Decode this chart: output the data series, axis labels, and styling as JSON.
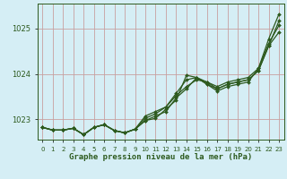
{
  "xlabel": "Graphe pression niveau de la mer (hPa)",
  "background_color": "#d5eef5",
  "grid_color": "#c8a0a0",
  "line_color": "#2d5a1e",
  "xlim": [
    -0.5,
    23.5
  ],
  "ylim": [
    1022.55,
    1025.55
  ],
  "yticks": [
    1023,
    1024,
    1025
  ],
  "xticks": [
    0,
    1,
    2,
    3,
    4,
    5,
    6,
    7,
    8,
    9,
    10,
    11,
    12,
    13,
    14,
    15,
    16,
    17,
    18,
    19,
    20,
    21,
    22,
    23
  ],
  "series": [
    [
      1022.82,
      1022.76,
      1022.76,
      1022.8,
      1022.66,
      1022.82,
      1022.88,
      1022.75,
      1022.7,
      1022.78,
      1022.97,
      1023.07,
      1023.17,
      1023.47,
      1023.67,
      1023.92,
      1023.77,
      1023.62,
      1023.72,
      1023.77,
      1023.82,
      1024.12,
      1024.77,
      1025.32
    ],
    [
      1022.82,
      1022.76,
      1022.76,
      1022.8,
      1022.66,
      1022.82,
      1022.88,
      1022.75,
      1022.7,
      1022.78,
      1023.02,
      1023.12,
      1023.27,
      1023.52,
      1023.72,
      1023.87,
      1023.82,
      1023.67,
      1023.77,
      1023.82,
      1023.87,
      1024.07,
      1024.62,
      1024.92
    ],
    [
      1022.82,
      1022.76,
      1022.76,
      1022.8,
      1022.66,
      1022.82,
      1022.88,
      1022.75,
      1022.7,
      1022.78,
      1023.07,
      1023.17,
      1023.27,
      1023.57,
      1023.87,
      1023.92,
      1023.82,
      1023.72,
      1023.82,
      1023.87,
      1023.92,
      1024.12,
      1024.67,
      1025.07
    ],
    [
      1022.82,
      1022.76,
      1022.76,
      1022.8,
      1022.66,
      1022.82,
      1022.88,
      1022.75,
      1022.7,
      1022.78,
      1022.97,
      1023.02,
      1023.22,
      1023.42,
      1023.97,
      1023.92,
      1023.77,
      1023.67,
      1023.77,
      1023.82,
      1023.87,
      1024.07,
      1024.62,
      1025.17
    ]
  ]
}
